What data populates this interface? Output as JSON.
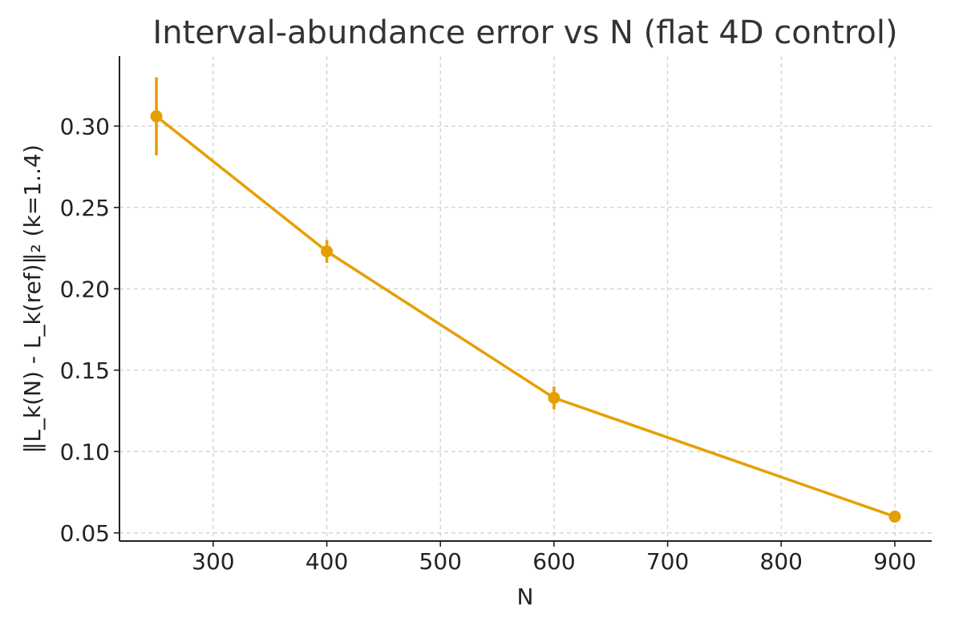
{
  "chart_data": {
    "type": "line",
    "title": "Interval-abundance error vs N (flat 4D control)",
    "xlabel": "N",
    "ylabel": "‖L_k(N) - L_k(ref)‖₂   (k=1..4)",
    "x": [
      250,
      400,
      600,
      900
    ],
    "series": [
      {
        "values": [
          0.306,
          0.223,
          0.133,
          0.06
        ],
        "error": [
          0.024,
          0.007,
          0.007,
          0.001
        ],
        "color": "#E69F00"
      }
    ],
    "xlim": [
      217.5,
      932.5
    ],
    "ylim": [
      0.045,
      0.343
    ],
    "xticks": [
      300,
      400,
      500,
      600,
      700,
      800,
      900
    ],
    "xtick_labels": [
      "300",
      "400",
      "500",
      "600",
      "700",
      "800",
      "900"
    ],
    "yticks": [
      0.05,
      0.1,
      0.15,
      0.2,
      0.25,
      0.3
    ],
    "ytick_labels": [
      "0.05",
      "0.10",
      "0.15",
      "0.20",
      "0.25",
      "0.30"
    ],
    "grid": true,
    "legend": "none"
  }
}
